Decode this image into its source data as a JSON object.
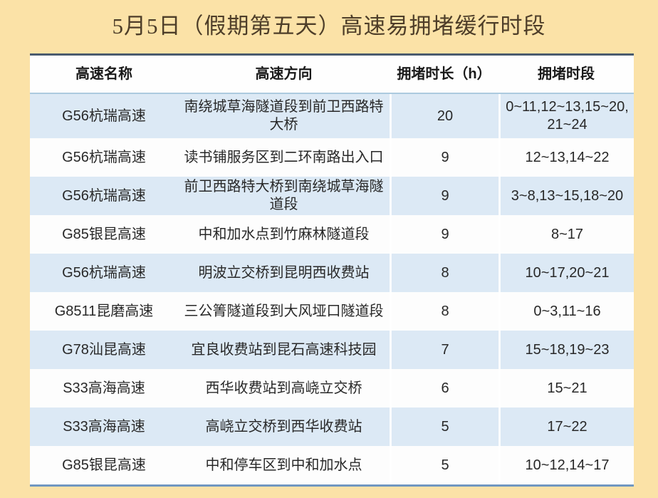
{
  "title": "5月5日（假期第五天）高速易拥堵缓行时段",
  "table": {
    "headers": [
      "高速名称",
      "高速方向",
      "拥堵时长（h）",
      "拥堵时段"
    ],
    "rows": [
      {
        "name": "G56杭瑞高速",
        "direction": "南绕城草海隧道段到前卫西路特大桥",
        "duration": "20",
        "periods": "0~11,12~13,15~20,\n21~24"
      },
      {
        "name": "G56杭瑞高速",
        "direction": "读书铺服务区到二环南路出入口",
        "duration": "9",
        "periods": "12~13,14~22"
      },
      {
        "name": "G56杭瑞高速",
        "direction": "前卫西路特大桥到南绕城草海隧道段",
        "duration": "9",
        "periods": "3~8,13~15,18~20"
      },
      {
        "name": "G85银昆高速",
        "direction": "中和加水点到竹麻林隧道段",
        "duration": "9",
        "periods": "8~17"
      },
      {
        "name": "G56杭瑞高速",
        "direction": "明波立交桥到昆明西收费站",
        "duration": "8",
        "periods": "10~17,20~21"
      },
      {
        "name": "G8511昆磨高速",
        "direction": "三公箐隧道段到大风垭口隧道段",
        "duration": "8",
        "periods": "0~3,11~16"
      },
      {
        "name": "G78汕昆高速",
        "direction": "宜良收费站到昆石高速科技园",
        "duration": "7",
        "periods": "15~18,19~23"
      },
      {
        "name": "S33高海高速",
        "direction": "西华收费站到高峣立交桥",
        "duration": "6",
        "periods": "15~21"
      },
      {
        "name": "S33高海高速",
        "direction": "高峣立交桥到西华收费站",
        "duration": "5",
        "periods": "17~22"
      },
      {
        "name": "G85银昆高速",
        "direction": "中和停车区到中和加水点",
        "duration": "5",
        "periods": "10~12,14~17"
      }
    ]
  },
  "chart_data": {
    "type": "table",
    "title": "5月5日（假期第五天）高速易拥堵缓行时段",
    "columns": [
      "高速名称",
      "高速方向",
      "拥堵时长（h）",
      "拥堵时段"
    ],
    "rows": [
      [
        "G56杭瑞高速",
        "南绕城草海隧道段到前卫西路特大桥",
        20,
        "0~11,12~13,15~20,21~24"
      ],
      [
        "G56杭瑞高速",
        "读书铺服务区到二环南路出入口",
        9,
        "12~13,14~22"
      ],
      [
        "G56杭瑞高速",
        "前卫西路特大桥到南绕城草海隧道段",
        9,
        "3~8,13~15,18~20"
      ],
      [
        "G85银昆高速",
        "中和加水点到竹麻林隧道段",
        9,
        "8~17"
      ],
      [
        "G56杭瑞高速",
        "明波立交桥到昆明西收费站",
        8,
        "10~17,20~21"
      ],
      [
        "G8511昆磨高速",
        "三公箐隧道段到大风垭口隧道段",
        8,
        "0~3,11~16"
      ],
      [
        "G78汕昆高速",
        "宜良收费站到昆石高速科技园",
        7,
        "15~18,19~23"
      ],
      [
        "S33高海高速",
        "西华收费站到高峣立交桥",
        6,
        "15~21"
      ],
      [
        "S33高海高速",
        "高峣立交桥到西华收费站",
        5,
        "17~22"
      ],
      [
        "G85银昆高速",
        "中和停车区到中和加水点",
        5,
        "10~12,14~17"
      ]
    ],
    "row_striping": "odd rows light blue, even rows white",
    "legend_position": "none"
  },
  "colors": {
    "page-bg": "#fbe2a7",
    "row-alt-bg": "#dce9f5",
    "row-bg": "#fdfdfd",
    "title-color": "#4e3e29",
    "header-text": "#1a1a1a",
    "cell-text": "#282828",
    "table-top-border": "#4a5b6e",
    "table-bottom-border": "#7097c0",
    "header-rule": "#accadf"
  }
}
